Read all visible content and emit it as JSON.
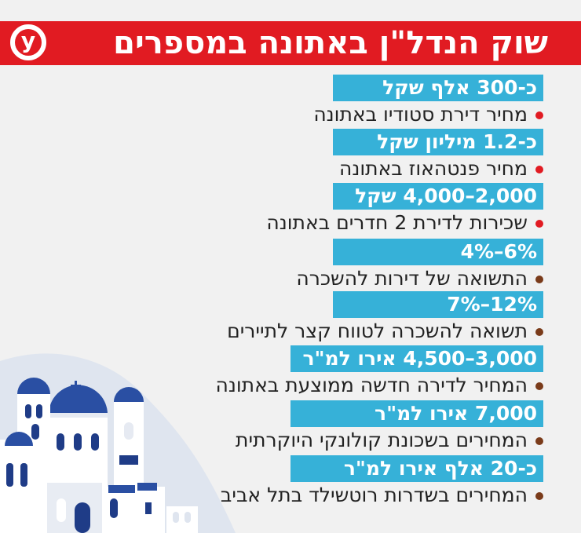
{
  "header": {
    "title": "שוק הנדל\"ן באתונה במספרים",
    "logo_letter": "y"
  },
  "colors": {
    "header": "#e11b22",
    "band": "#36b1d8",
    "bullet_red": "#e11b22",
    "bullet_brown": "#7a3b1a"
  },
  "rows": [
    {
      "value": "כ-300 אלף שקל",
      "label": "מחיר דירת סטודיו באתונה",
      "bullet": "red"
    },
    {
      "value": "כ-1.2 מיליון שקל",
      "label": "מחיר פנטהאוז באתונה",
      "bullet": "red"
    },
    {
      "value": "2,000–4,000 שקל",
      "label": "שכירות לדירת 2 חדרים באתונה",
      "bullet": "red"
    },
    {
      "value": "6%–4%",
      "label": "התשואה של דירות להשכרה",
      "bullet": "brown"
    },
    {
      "value": "12%–7%",
      "label": "תשואה להשכרה לטווח קצר לתיירים",
      "bullet": "brown"
    },
    {
      "value": "3,000–4,500 אירו למ\"ר",
      "label": "המחיר לדירה חדשה ממוצעת באתונה",
      "bullet": "brown"
    },
    {
      "value": "7,000 אירו למ\"ר",
      "label": "המחירים בשכונת קולונקי היוקרתית",
      "bullet": "brown"
    },
    {
      "value": "כ-20 אלף אירו למ\"ר",
      "label": "המחירים בשדרות רוטשילד בתל אביב",
      "bullet": "brown"
    }
  ]
}
